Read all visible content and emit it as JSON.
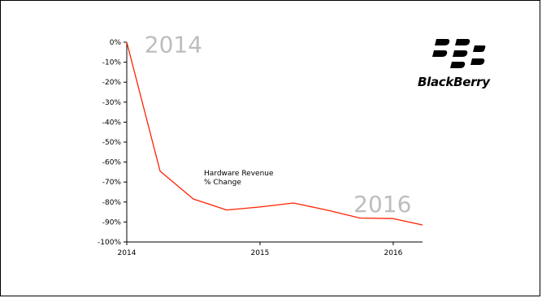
{
  "chart_data": {
    "type": "line",
    "title": "",
    "xlabel": "",
    "ylabel": "",
    "annotation": [
      "Hardware Revenue",
      "% Change"
    ],
    "year_watermarks": [
      {
        "text": "2014",
        "x": 2014.35,
        "y": -5
      },
      {
        "text": "2016",
        "x": 2015.92,
        "y": -85
      }
    ],
    "x_ticks": [
      {
        "label": "2014",
        "value": 2014.0
      },
      {
        "label": "2015",
        "value": 2015.0
      },
      {
        "label": "2016",
        "value": 2016.0
      }
    ],
    "y_ticks": [
      "0%",
      "-10%",
      "-20%",
      "-30%",
      "-40%",
      "-50%",
      "-60%",
      "-70%",
      "-80%",
      "-90%",
      "-100%"
    ],
    "xlim": [
      2014.0,
      2016.22
    ],
    "ylim": [
      -100,
      0
    ],
    "series": [
      {
        "color": "#ff2200",
        "x": [
          2014.0,
          2014.25,
          2014.5,
          2014.75,
          2015.0,
          2015.25,
          2015.5,
          2015.75,
          2016.0,
          2016.22
        ],
        "y": [
          0,
          -64.5,
          -78.5,
          -84,
          -82.5,
          -80.5,
          -84,
          -88,
          -88.3,
          -91.5
        ]
      }
    ],
    "grid": false,
    "legend": "none"
  },
  "logo": {
    "text": "BlackBerry",
    "icon": "blackberry-logo-icon"
  }
}
